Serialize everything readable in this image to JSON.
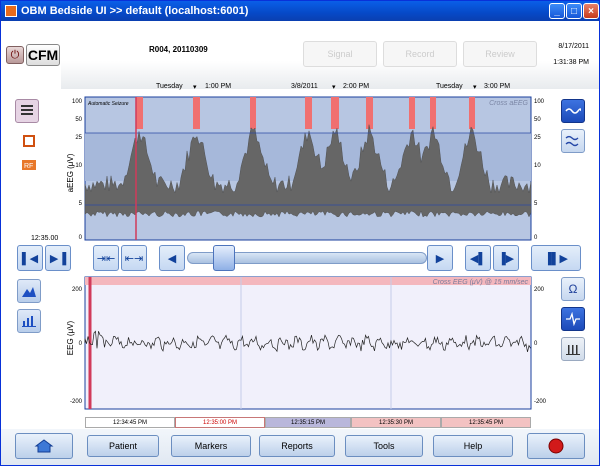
{
  "window": {
    "title": "OBM Bedside UI >> default (localhost:6001)"
  },
  "header": {
    "app_badge": "CFM",
    "record_id": "R004, 20110309",
    "date": "8/17/2011",
    "time": "1:31:38 PM",
    "top_buttons": [
      "Signal",
      "Record",
      "Review"
    ]
  },
  "time_axis": {
    "labels": [
      "Tuesday",
      "1:00 PM",
      "3/8/2011",
      "2:00 PM",
      "Tuesday",
      "3:00 PM"
    ]
  },
  "aeeg": {
    "ylabel": "aEEG (μV)",
    "annotation": "Automatic Seizure",
    "overlay_label": "Cross aEEG",
    "yticks_left": [
      "100",
      "50",
      "25",
      "10",
      "5",
      "0"
    ],
    "yticks_right": [
      "100",
      "50",
      "25",
      "10",
      "5",
      "0"
    ]
  },
  "position_time": "12:35.00",
  "eeg": {
    "ylabel": "EEG (μV)",
    "overlay_label": "Cross EEG (μV) @ 15 mm/sec",
    "yticks_left": [
      "200",
      "0",
      "-200"
    ],
    "yticks_right": [
      "200",
      "0",
      "-200"
    ]
  },
  "timestamps": [
    "12:34:45 PM",
    "12:35:00 PM",
    "12:35:15 PM",
    "12:35:30 PM",
    "12:35:45 PM"
  ],
  "bottom_buttons": [
    "Patient",
    "Markers",
    "Reports",
    "Tools",
    "Help"
  ],
  "colors": {
    "seizure": "#f07070",
    "accent": "#1d4fc2"
  }
}
